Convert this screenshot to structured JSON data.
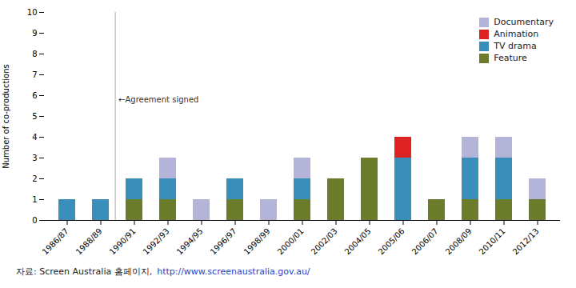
{
  "chart_data": {
    "type": "bar",
    "stacked": true,
    "categories": [
      "1986/87",
      "1988/89",
      "1990/91",
      "1992/93",
      "1994/95",
      "1996/97",
      "1998/99",
      "2000/01",
      "2002/03",
      "2004/05",
      "2005/06",
      "2006/07",
      "2008/09",
      "2010/11",
      "2012/13"
    ],
    "series": [
      {
        "name": "Documentary",
        "color": "#b4b4d8",
        "values": [
          0,
          0,
          0,
          1,
          1,
          0,
          1,
          1,
          0,
          0,
          0,
          0,
          1,
          1,
          1
        ]
      },
      {
        "name": "Animation",
        "color": "#dd2222",
        "values": [
          0,
          0,
          0,
          0,
          0,
          0,
          0,
          0,
          0,
          0,
          1,
          0,
          0,
          0,
          0
        ]
      },
      {
        "name": "TV drama",
        "color": "#3a8fba",
        "values": [
          1,
          1,
          1,
          1,
          0,
          1,
          0,
          1,
          0,
          0,
          3,
          0,
          2,
          2,
          0
        ]
      },
      {
        "name": "Feature",
        "color": "#6b7c2a",
        "values": [
          0,
          0,
          1,
          1,
          0,
          1,
          0,
          1,
          2,
          3,
          0,
          1,
          1,
          1,
          1
        ]
      }
    ],
    "ylabel": "Number of co-productions",
    "ylim": [
      0,
      10
    ],
    "yticks": [
      0,
      1,
      2,
      3,
      4,
      5,
      6,
      7,
      8,
      9,
      10
    ],
    "grid": false,
    "legend": "upper right",
    "annotations": [
      {
        "text": "←Agreement signed",
        "x": 1.5,
        "y": 5.8
      }
    ],
    "caption": "자료: Screen Australia 홈페이지,",
    "caption_url": "http://www.screenaustralia.gov.au/"
  }
}
